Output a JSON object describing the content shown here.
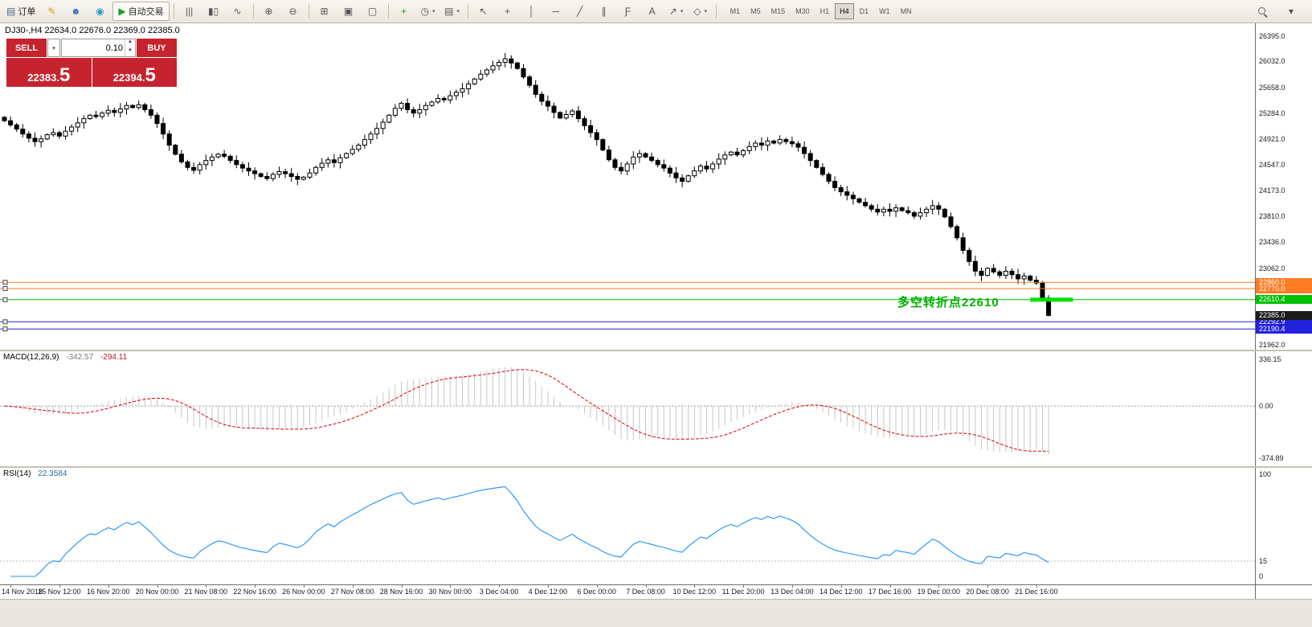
{
  "colors": {
    "accent_red": "#c5242f",
    "orange_line": "#ff7a21",
    "green_line": "#00c000",
    "blue_line": "#2222dd",
    "rsi_line": "#1e90ff",
    "macd_signal": "#e00000",
    "histogram": "#c6c6c6"
  },
  "toolbar": {
    "groups": [
      {
        "name": "trade",
        "items": [
          {
            "name": "new-order-button",
            "glyph": "▤",
            "label": "订单",
            "color": "#4a6b8a"
          },
          {
            "name": "metaeditor-button",
            "glyph": "✎",
            "color": "#d7a000"
          },
          {
            "name": "profile-icon-button",
            "glyph": "☻",
            "color": "#3b76c4"
          },
          {
            "name": "community-icon-button",
            "glyph": "◉",
            "color": "#2e9ac0"
          },
          {
            "name": "autotrading-button",
            "glyph": "▶",
            "label": "自动交易",
            "color": "#1fa028",
            "boxed": true
          }
        ]
      },
      {
        "name": "chart-type",
        "items": [
          {
            "name": "bar-chart-button",
            "glyph": "|||",
            "color": "#555"
          },
          {
            "name": "candlestick-chart-button",
            "glyph": "▮▯",
            "color": "#555"
          },
          {
            "name": "line-chart-button",
            "glyph": "∿",
            "color": "#555"
          }
        ]
      },
      {
        "name": "zoom",
        "items": [
          {
            "name": "zoom-in-button",
            "glyph": "⊕",
            "color": "#555"
          },
          {
            "name": "zoom-out-button",
            "glyph": "⊖",
            "color": "#555"
          }
        ]
      },
      {
        "name": "windows",
        "items": [
          {
            "name": "tile-windows-button",
            "glyph": "⊞",
            "color": "#555"
          },
          {
            "name": "indicator-windows-button",
            "glyph": "▣",
            "color": "#555"
          },
          {
            "name": "auto-arrange-button",
            "glyph": "▢",
            "color": "#555"
          }
        ]
      },
      {
        "name": "objects",
        "items": [
          {
            "name": "add-indicator-button",
            "glyph": "+",
            "color": "#1fa028"
          },
          {
            "name": "period-selector-button",
            "glyph": "◷",
            "caret": true,
            "color": "#555"
          },
          {
            "name": "template-button",
            "glyph": "▤",
            "caret": true,
            "color": "#555"
          }
        ]
      },
      {
        "name": "drawing",
        "items": [
          {
            "name": "cursor-button",
            "glyph": "↖",
            "color": "#555"
          },
          {
            "name": "crosshair-button",
            "glyph": "+",
            "color": "#555"
          },
          {
            "name": "vertical-line-button",
            "glyph": "│",
            "color": "#555"
          },
          {
            "name": "horizontal-line-button",
            "glyph": "─",
            "color": "#555"
          },
          {
            "name": "trendline-button",
            "glyph": "╱",
            "color": "#555"
          },
          {
            "name": "channel-button",
            "glyph": "∥",
            "color": "#555"
          },
          {
            "name": "fibonacci-button",
            "glyph": "Ƒ",
            "color": "#555"
          },
          {
            "name": "text-button",
            "glyph": "A",
            "color": "#555"
          },
          {
            "name": "arrows-button",
            "glyph": "↗",
            "caret": true,
            "color": "#555"
          },
          {
            "name": "shapes-button",
            "glyph": "◇",
            "caret": true,
            "color": "#555"
          }
        ]
      }
    ],
    "timeframes": [
      "M1",
      "M5",
      "M15",
      "M30",
      "H1",
      "H4",
      "D1",
      "W1",
      "MN"
    ],
    "active_timeframe": "H4",
    "right_items": [
      {
        "name": "search-button",
        "glyph": "mag"
      },
      {
        "name": "toolbar-options-button",
        "glyph": "▾"
      }
    ]
  },
  "chart": {
    "header": "DJ30-,H4 22634.0 22676.0 22369.0 22385.0",
    "quote_panel": {
      "sell_label": "SELL",
      "buy_label": "BUY",
      "volume": "0.10",
      "dropdown_glyph": "▾",
      "spin_up": "▲",
      "spin_down": "▼",
      "sell_price_main": "22383.",
      "sell_price_big": "5",
      "buy_price_main": "22394.",
      "buy_price_big": "5"
    }
  },
  "chart_data": {
    "type": "candlestick",
    "symbol": "DJ30-",
    "timeframe": "H4",
    "bar_spacing_px": 7.6,
    "first_label_bar": 1,
    "label_every_n_bars": 8,
    "ohlc_header": {
      "open": 22634.0,
      "high": 22676.0,
      "low": 22369.0,
      "close": 22385.0
    },
    "last_candle": {
      "open": 22634.0,
      "high": 22676.0,
      "low": 22369.0,
      "close": 22385.0
    },
    "closes": [
      25180,
      25120,
      25060,
      24990,
      24930,
      24880,
      24920,
      24980,
      25010,
      24960,
      25030,
      25090,
      25150,
      25210,
      25260,
      25240,
      25290,
      25330,
      25300,
      25350,
      25400,
      25370,
      25410,
      25340,
      25260,
      25140,
      24990,
      24830,
      24700,
      24590,
      24510,
      24470,
      24550,
      24610,
      24660,
      24700,
      24670,
      24610,
      24550,
      24500,
      24460,
      24420,
      24380,
      24350,
      24410,
      24450,
      24420,
      24380,
      24340,
      24370,
      24430,
      24510,
      24570,
      24620,
      24580,
      24650,
      24710,
      24770,
      24830,
      24910,
      24990,
      25070,
      25160,
      25260,
      25360,
      25430,
      25340,
      25290,
      25340,
      25400,
      25450,
      25500,
      25480,
      25540,
      25590,
      25640,
      25710,
      25780,
      25850,
      25910,
      25970,
      26020,
      26070,
      26010,
      25930,
      25810,
      25690,
      25560,
      25460,
      25390,
      25300,
      25220,
      25270,
      25320,
      25210,
      25110,
      25010,
      24910,
      24760,
      24620,
      24510,
      24460,
      24560,
      24660,
      24710,
      24660,
      24610,
      24550,
      24500,
      24430,
      24360,
      24310,
      24390,
      24460,
      24530,
      24490,
      24560,
      24630,
      24690,
      24730,
      24690,
      24750,
      24810,
      24860,
      24830,
      24890,
      24860,
      24910,
      24880,
      24850,
      24800,
      24710,
      24610,
      24510,
      24410,
      24310,
      24220,
      24160,
      24110,
      24060,
      24010,
      23960,
      23910,
      23870,
      23910,
      23880,
      23930,
      23890,
      23860,
      23810,
      23860,
      23910,
      23960,
      23910,
      23800,
      23660,
      23500,
      23320,
      23160,
      23020,
      22960,
      23060,
      23010,
      22960,
      23020,
      22970,
      22910,
      22950,
      22890,
      22850,
      22634,
      22385
    ],
    "price_axis_ticks": [
      26395.0,
      26032.0,
      25658.0,
      25284.0,
      24921.0,
      24547.0,
      24173.0,
      23810.0,
      23436.0,
      23062.0,
      21962.0
    ],
    "hlines": [
      {
        "price": 22860.0,
        "color": "#ff7a21",
        "label": "22860.0"
      },
      {
        "price": 22770.0,
        "color": "#ff7a21",
        "label": "22770.0"
      },
      {
        "price": 22610.4,
        "color": "#00c000",
        "label": "22610.4"
      },
      {
        "price": 22292.9,
        "color": "#2222dd",
        "label": "22292.9"
      },
      {
        "price": 22190.4,
        "color": "#2222dd",
        "label": "22190.4"
      }
    ],
    "current_price_label": {
      "price": 22385.0,
      "label": "22385.0",
      "bg": "#1a1a1a"
    },
    "highlight_segment": {
      "price": 22610.4,
      "bar_start": 168,
      "bar_end": 175,
      "color": "#00e000",
      "thickness": 5
    },
    "annotation": {
      "text": "多空转折点22610",
      "color": "#00b000"
    },
    "time_labels": [
      "14 Nov 2018",
      "15 Nov 12:00",
      "16 Nov 20:00",
      "20 Nov 00:00",
      "21 Nov 08:00",
      "22 Nov 16:00",
      "26 Nov 00:00",
      "27 Nov 08:00",
      "28 Nov 16:00",
      "30 Nov 00:00",
      "3 Dec 04:00",
      "4 Dec 12:00",
      "6 Dec 00:00",
      "7 Dec 08:00",
      "10 Dec 12:00",
      "11 Dec 20:00",
      "13 Dec 04:00",
      "14 Dec 12:00",
      "17 Dec 16:00",
      "19 Dec 00:00",
      "20 Dec 08:00",
      "21 Dec 16:00"
    ],
    "macd": {
      "label": "MACD(12,26,9)",
      "value_main": "-342.57",
      "value_signal": "-294.11",
      "axis": [
        336.15,
        0.0,
        -374.89
      ],
      "params": [
        12,
        26,
        9
      ]
    },
    "rsi": {
      "label": "RSI(14)",
      "value": "22.3584",
      "axis": [
        100,
        15,
        0
      ],
      "level": 15,
      "period": 14
    }
  }
}
